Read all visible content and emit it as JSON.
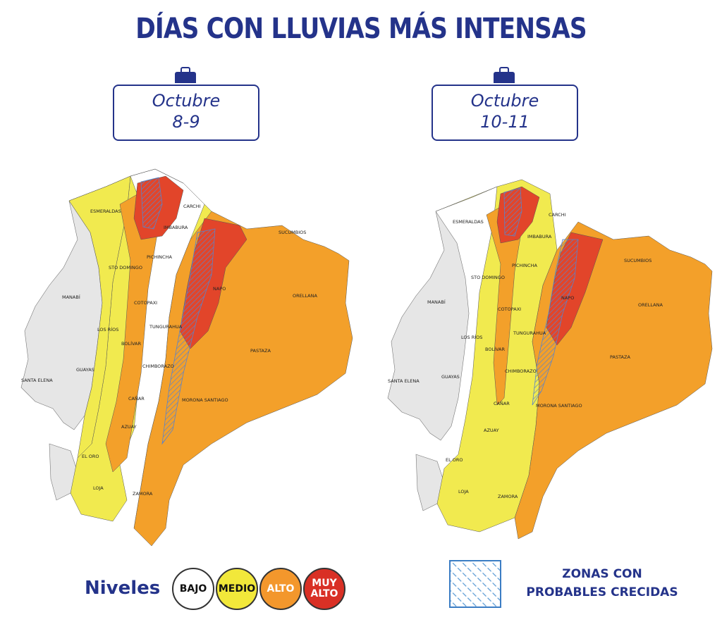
{
  "title": {
    "part1": "DÍAS CON LLUVIAS",
    "part2": "MÁS INTENSAS"
  },
  "panels": [
    {
      "date_line1": "Octubre",
      "date_line2": "8-9",
      "labels": {
        "esmeraldas": "ESMERALDAS",
        "carchi": "CARCHI",
        "imbabura": "IMBABURA",
        "sucumbios": "SUCUMBIOS",
        "pichincha": "PICHINCHA",
        "sto_domingo": "STO DOMINGO",
        "manabi": "MANABÍ",
        "napo": "NAPO",
        "orellana": "ORELLANA",
        "cotopaxi": "COTOPAXI",
        "los_rios": "LOS RÍOS",
        "tungurahua": "TUNGURAHUA",
        "bolivar": "BOLÍVAR",
        "pastaza": "PASTAZA",
        "chimborazo": "CHIMBORAZO",
        "guayas": "GUAYAS",
        "santa_elena": "SANTA ELENA",
        "canar": "CAÑAR",
        "morona": "MORONA SANTIAGO",
        "azuay": "AZUAY",
        "el_oro": "EL ORO",
        "loja": "LOJA",
        "zamora": "ZAMORA"
      }
    },
    {
      "date_line1": "Octubre",
      "date_line2": "10-11",
      "labels": {
        "esmeraldas": "ESMERALDAS",
        "carchi": "CARCHI",
        "imbabura": "IMBABURA",
        "sucumbios": "SUCUMBIOS",
        "pichincha": "PICHINCHA",
        "sto_domingo": "STO DOMINGO",
        "manabi": "MANABÍ",
        "napo": "NAPO",
        "orellana": "ORELLANA",
        "cotopaxi": "COTOPAXI",
        "los_rios": "LOS RÍOS",
        "tungurahua": "TUNGURAHUA",
        "bolivar": "BOLÍVAR",
        "pastaza": "PASTAZA",
        "chimborazo": "CHIMBORAZO",
        "guayas": "GUAYAS",
        "santa_elena": "SANTA ELENA",
        "canar": "CAÑAR",
        "morona": "MORONA SANTIAGO",
        "azuay": "AZUAY",
        "el_oro": "EL ORO",
        "loja": "LOJA",
        "zamora": "ZAMORA"
      }
    }
  ],
  "legend": {
    "title": "Niveles",
    "levels": [
      {
        "label1": "BAJO",
        "label2": "",
        "color": "#ffffff"
      },
      {
        "label1": "MEDIO",
        "label2": "",
        "color": "#f2e83a"
      },
      {
        "label1": "ALTO",
        "label2": "",
        "color": "#f3972c"
      },
      {
        "label1": "MUY",
        "label2": "ALTO",
        "color": "#d93025"
      }
    ],
    "zones_label": "ZONAS CON\nPROBABLES  CRECIDAS"
  },
  "colors": {
    "bajo": "#e6e6e6",
    "medio": "#f1ea4f",
    "alto": "#f3a02a",
    "alto_dark": "#ee8a2a",
    "muy_alto": "#e2452a",
    "brand": "#24338a"
  }
}
